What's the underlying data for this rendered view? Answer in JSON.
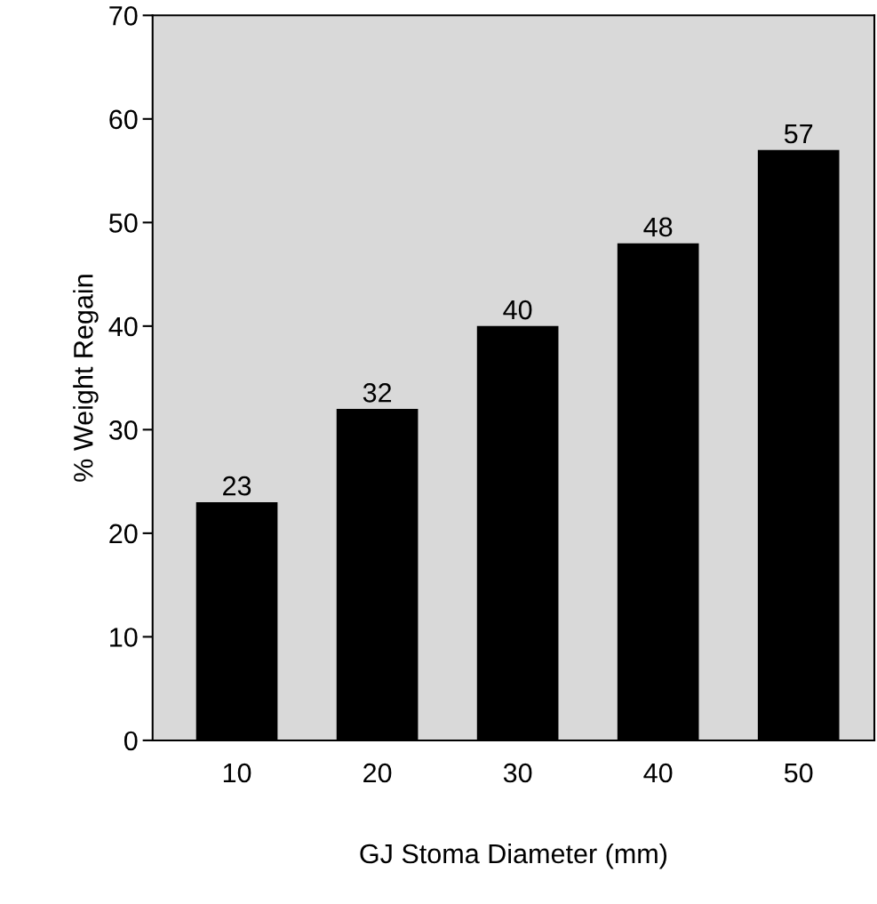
{
  "chart_data": {
    "type": "bar",
    "xlabel": "GJ Stoma Diameter (mm)",
    "ylabel": "% Weight Regain",
    "categories": [
      "10",
      "20",
      "30",
      "40",
      "50"
    ],
    "values": [
      23,
      32,
      40,
      48,
      57
    ],
    "color": "#000000",
    "ylim": [
      0,
      70
    ],
    "yticks": [
      0,
      10,
      20,
      30,
      40,
      50,
      60,
      70
    ],
    "grid": false,
    "data_labels": true
  }
}
